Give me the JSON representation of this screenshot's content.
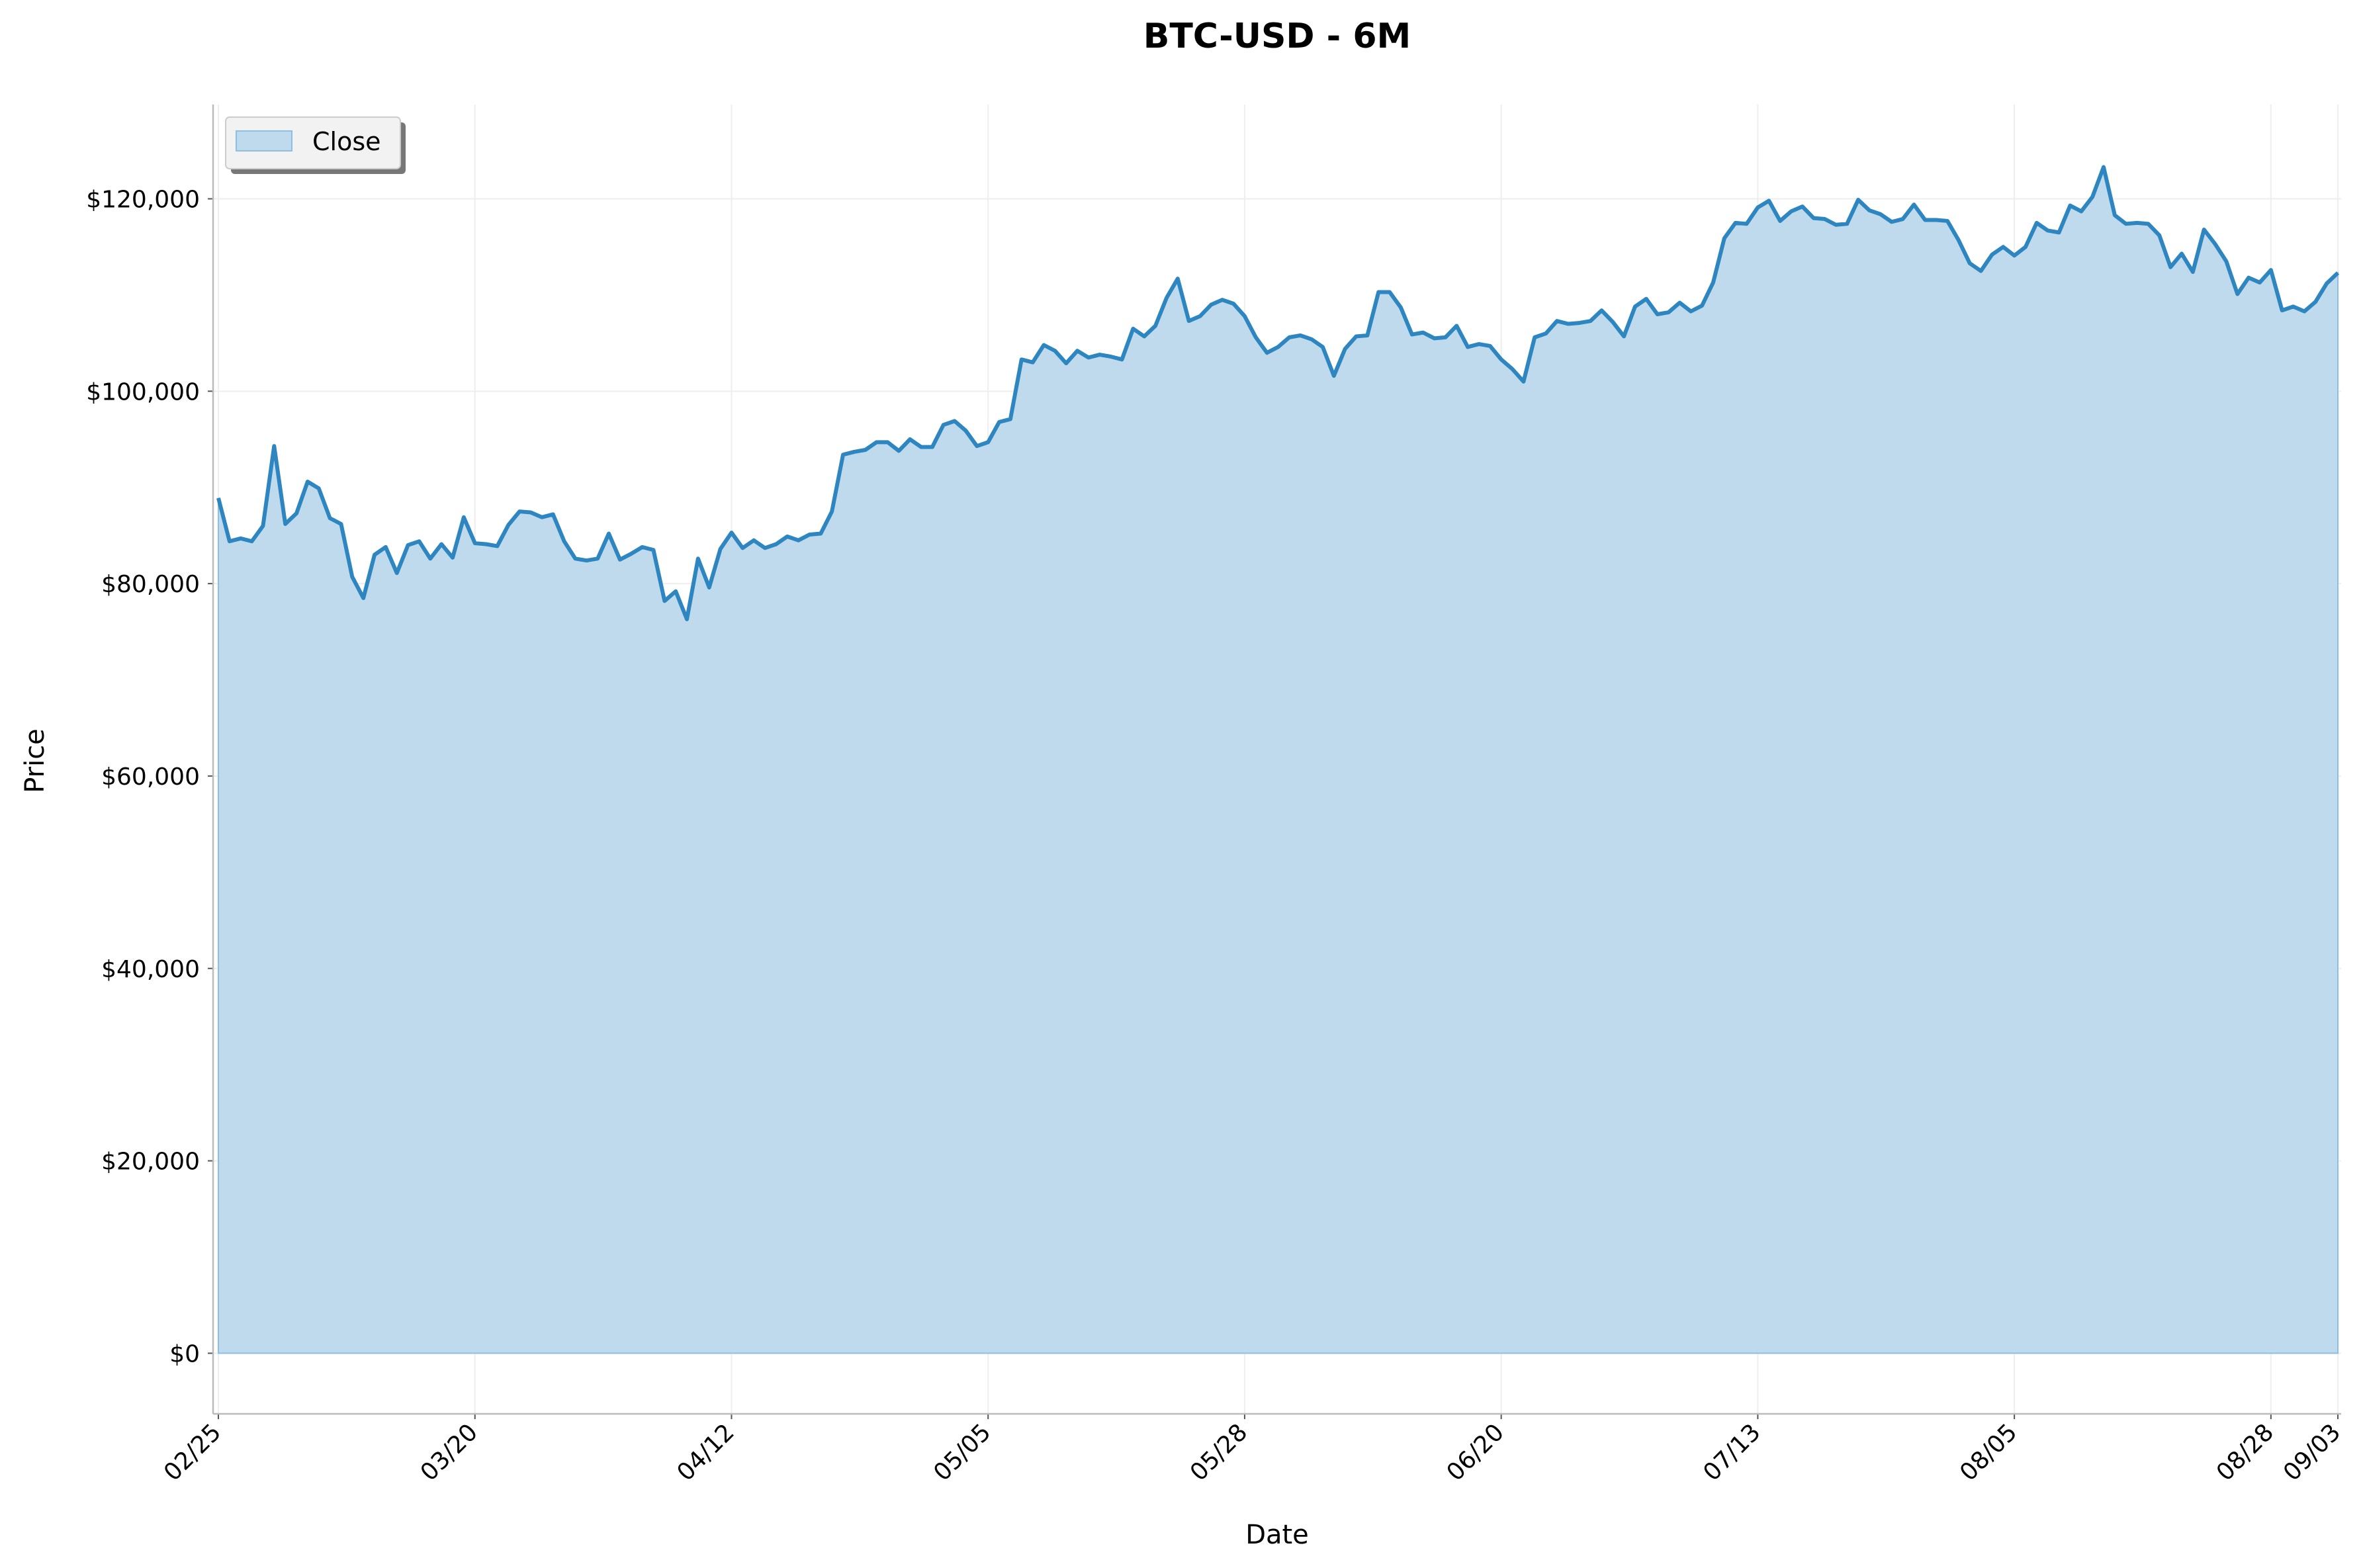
{
  "chart_data": {
    "type": "area",
    "title": "BTC-USD - 6M",
    "xlabel": "Date",
    "ylabel": "Price",
    "x_ticks": [
      "02/25",
      "03/20",
      "04/12",
      "05/05",
      "05/28",
      "06/20",
      "07/13",
      "08/05",
      "08/28",
      "09/03"
    ],
    "y_ticks": [
      "$0",
      "$20,000",
      "$40,000",
      "$60,000",
      "$80,000",
      "$100,000",
      "$120,000"
    ],
    "y_tick_values": [
      0,
      20000,
      40000,
      60000,
      80000,
      100000,
      120000
    ],
    "ylim": [
      -6300,
      129800
    ],
    "xlim": [
      "02/25",
      "09/03"
    ],
    "grid": true,
    "legend": {
      "position": "top-left",
      "entries": [
        "Close"
      ]
    },
    "colors": {
      "line": "#2e86c1",
      "fill": "#bfdaec",
      "grid": "#eeeeee",
      "axis": "#bbbbbb"
    },
    "series": [
      {
        "name": "Close",
        "x": [
          "02/25",
          "02/26",
          "02/27",
          "02/28",
          "03/01",
          "03/02",
          "03/03",
          "03/04",
          "03/05",
          "03/06",
          "03/07",
          "03/08",
          "03/09",
          "03/10",
          "03/11",
          "03/12",
          "03/13",
          "03/14",
          "03/15",
          "03/16",
          "03/17",
          "03/18",
          "03/19",
          "03/20",
          "03/21",
          "03/22",
          "03/23",
          "03/24",
          "03/25",
          "03/26",
          "03/27",
          "03/28",
          "03/29",
          "03/30",
          "03/31",
          "04/01",
          "04/02",
          "04/03",
          "04/04",
          "04/05",
          "04/06",
          "04/07",
          "04/08",
          "04/09",
          "04/10",
          "04/11",
          "04/12",
          "04/13",
          "04/14",
          "04/15",
          "04/16",
          "04/17",
          "04/18",
          "04/19",
          "04/20",
          "04/21",
          "04/22",
          "04/23",
          "04/24",
          "04/25",
          "04/26",
          "04/27",
          "04/28",
          "04/29",
          "04/30",
          "05/01",
          "05/02",
          "05/03",
          "05/04",
          "05/05",
          "05/06",
          "05/07",
          "05/08",
          "05/09",
          "05/10",
          "05/11",
          "05/12",
          "05/13",
          "05/14",
          "05/15",
          "05/16",
          "05/17",
          "05/18",
          "05/19",
          "05/20",
          "05/21",
          "05/22",
          "05/23",
          "05/24",
          "05/25",
          "05/26",
          "05/27",
          "05/28",
          "05/29",
          "05/30",
          "05/31",
          "06/01",
          "06/02",
          "06/03",
          "06/04",
          "06/05",
          "06/06",
          "06/07",
          "06/08",
          "06/09",
          "06/10",
          "06/11",
          "06/12",
          "06/13",
          "06/14",
          "06/15",
          "06/16",
          "06/17",
          "06/18",
          "06/19",
          "06/20",
          "06/21",
          "06/22",
          "06/23",
          "06/24",
          "06/25",
          "06/26",
          "06/27",
          "06/28",
          "06/29",
          "06/30",
          "07/01",
          "07/02",
          "07/03",
          "07/04",
          "07/05",
          "07/06",
          "07/07",
          "07/08",
          "07/09",
          "07/10",
          "07/11",
          "07/12",
          "07/13",
          "07/14",
          "07/15",
          "07/16",
          "07/17",
          "07/18",
          "07/19",
          "07/20",
          "07/21",
          "07/22",
          "07/23",
          "07/24",
          "07/25",
          "07/26",
          "07/27",
          "07/28",
          "07/29",
          "07/30",
          "07/31",
          "08/01",
          "08/02",
          "08/03",
          "08/04",
          "08/05",
          "08/06",
          "08/07",
          "08/08",
          "08/09",
          "08/10",
          "08/11",
          "08/12",
          "08/13",
          "08/14",
          "08/15",
          "08/16",
          "08/17",
          "08/18",
          "08/19",
          "08/20",
          "08/21",
          "08/22",
          "08/23",
          "08/24",
          "08/25",
          "08/26",
          "08/27",
          "08/28",
          "08/29",
          "08/30",
          "08/31",
          "09/01",
          "09/02",
          "09/03"
        ],
        "values": [
          88900,
          84400,
          84700,
          84400,
          86000,
          94300,
          86200,
          87300,
          90600,
          89900,
          86800,
          86200,
          80700,
          78500,
          83000,
          83800,
          81100,
          84000,
          84400,
          82600,
          84100,
          82700,
          86900,
          84200,
          84100,
          83900,
          86100,
          87500,
          87400,
          86900,
          87200,
          84400,
          82600,
          82400,
          82600,
          85200,
          82500,
          83100,
          83800,
          83500,
          78200,
          79200,
          76300,
          82600,
          79600,
          83600,
          85300,
          83700,
          84500,
          83700,
          84100,
          84900,
          84500,
          85100,
          85200,
          87500,
          93400,
          93700,
          93900,
          94700,
          94700,
          93800,
          95000,
          94200,
          94200,
          96500,
          96900,
          95900,
          94300,
          94700,
          96800,
          97100,
          103300,
          103000,
          104800,
          104200,
          102900,
          104200,
          103500,
          103800,
          103600,
          103300,
          106500,
          105700,
          106800,
          109700,
          111700,
          107300,
          107800,
          109000,
          109500,
          109100,
          107800,
          105600,
          104000,
          104600,
          105600,
          105800,
          105400,
          104600,
          101600,
          104400,
          105700,
          105800,
          110300,
          110300,
          108700,
          105900,
          106100,
          105500,
          105600,
          106800,
          104600,
          104900,
          104700,
          103300,
          102300,
          101000,
          105600,
          106000,
          107300,
          107000,
          107100,
          107300,
          108400,
          107200,
          105700,
          108800,
          109600,
          108000,
          108200,
          109200,
          108300,
          108900,
          111300,
          115900,
          117500,
          117400,
          119100,
          119800,
          117700,
          118700,
          119200,
          118000,
          117900,
          117300,
          117400,
          119900,
          118800,
          118400,
          117600,
          117900,
          119400,
          117800,
          117800,
          117700,
          115700,
          113300,
          112500,
          114200,
          115000,
          114100,
          115000,
          117500,
          116700,
          116500,
          119300,
          118700,
          120200,
          123300,
          118300,
          117400,
          117500,
          117400,
          116200,
          112900,
          114300,
          112400,
          116800,
          115300,
          113500,
          110100,
          111800,
          111300,
          112600,
          108400,
          108800,
          108300,
          109300,
          111200,
          112300
        ]
      }
    ]
  }
}
